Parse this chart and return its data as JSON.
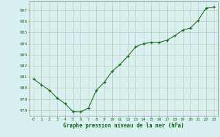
{
  "x": [
    0,
    1,
    2,
    3,
    4,
    5,
    6,
    7,
    8,
    9,
    10,
    11,
    12,
    13,
    14,
    15,
    16,
    17,
    18,
    19,
    20,
    21,
    22,
    23
  ],
  "y": [
    980.8,
    980.3,
    979.8,
    979.1,
    978.6,
    977.9,
    977.85,
    978.2,
    979.8,
    980.5,
    981.5,
    982.1,
    982.85,
    983.7,
    984.0,
    984.1,
    984.1,
    984.3,
    984.7,
    985.2,
    985.4,
    986.1,
    987.2,
    987.3
  ],
  "ylim": [
    977.5,
    987.8
  ],
  "yticks": [
    978,
    979,
    980,
    981,
    982,
    983,
    984,
    985,
    986,
    987
  ],
  "xticks": [
    0,
    1,
    2,
    3,
    4,
    5,
    6,
    7,
    8,
    9,
    10,
    11,
    12,
    13,
    14,
    15,
    16,
    17,
    18,
    19,
    20,
    21,
    22,
    23
  ],
  "xlabel": "Graphe pression niveau de la mer (hPa)",
  "line_color": "#1a6b1a",
  "marker_color": "#1a6b1a",
  "bg_color": "#d8f0f0",
  "grid_color_major": "#b8ccb8",
  "tick_label_color": "#1a6b1a",
  "xlabel_color": "#1a6b1a"
}
